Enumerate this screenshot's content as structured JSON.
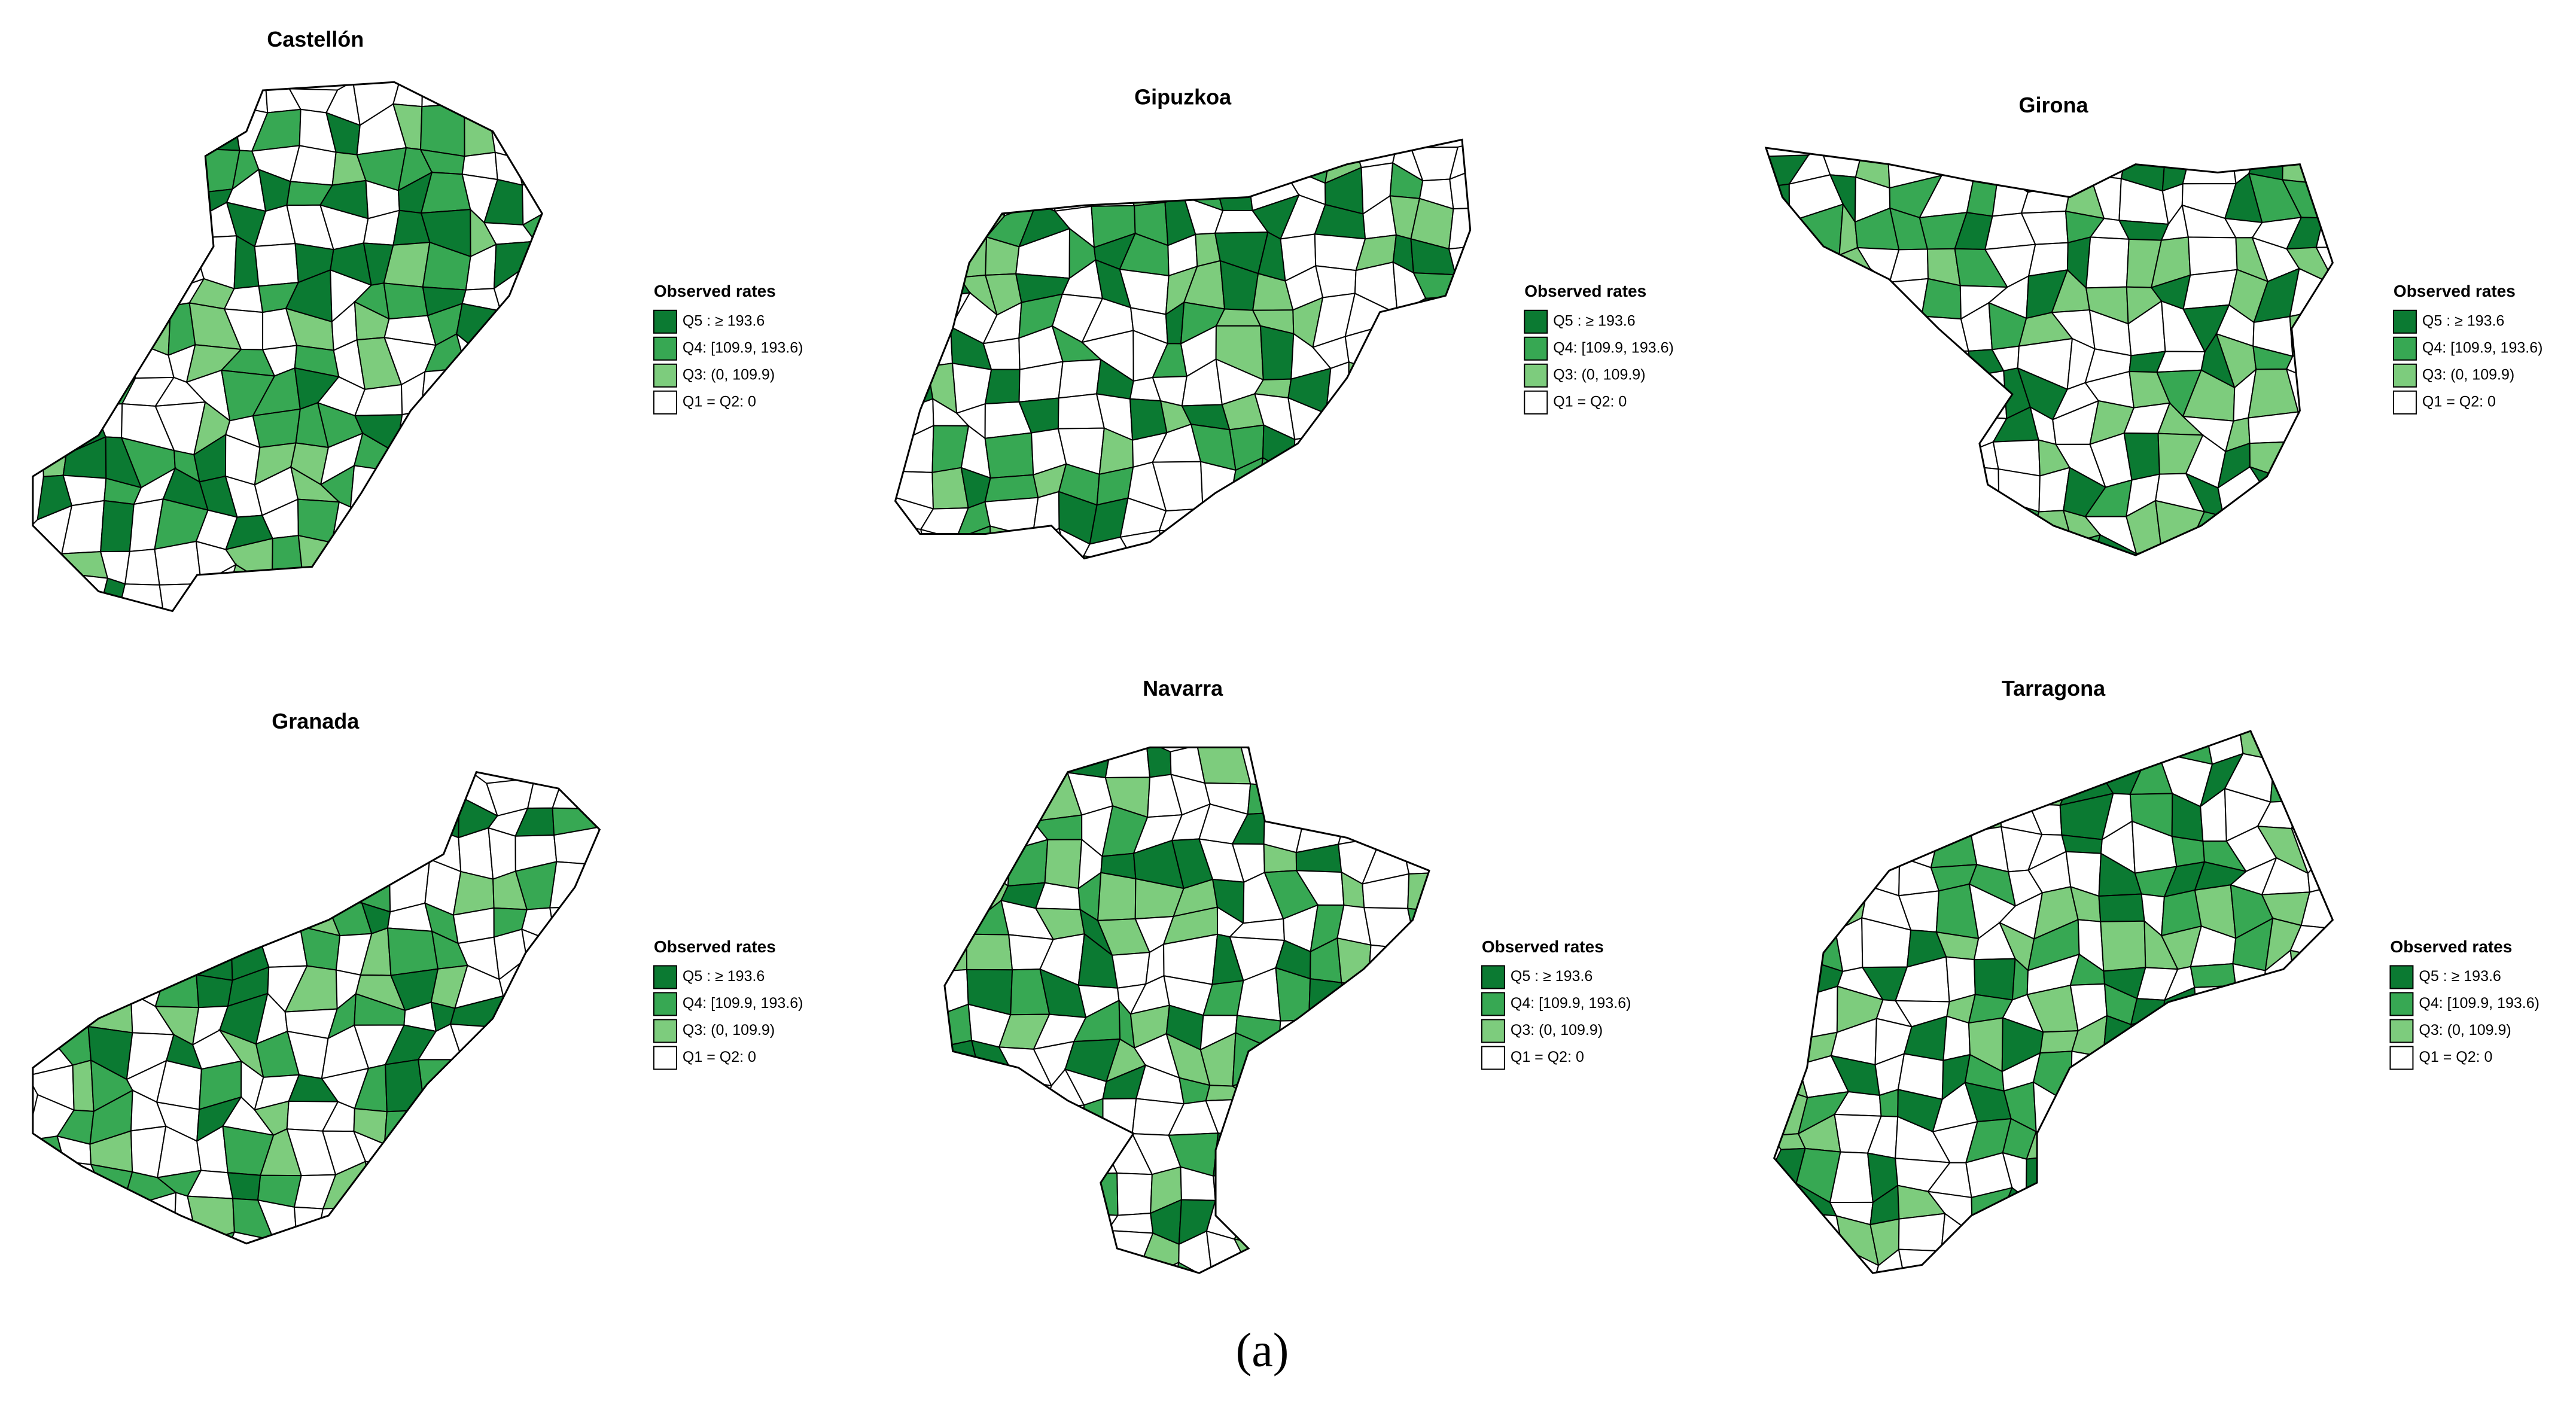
{
  "maps": [
    {
      "title": "Castellón",
      "legend": {
        "title": "Observed rates",
        "items": [
          {
            "label": "Q5 : ≥ 193.6",
            "color": "#0b7a32"
          },
          {
            "label": "Q4: [109.9, 193.6)",
            "color": "#37a853"
          },
          {
            "label": "Q3: (0, 109.9)",
            "color": "#7dcc7d"
          },
          {
            "label": "Q1 = Q2: 0",
            "color": "#ffffff"
          }
        ]
      }
    },
    {
      "title": "Gipuzkoa",
      "legend": {
        "title": "Observed rates",
        "items": [
          {
            "label": "Q5 : ≥ 193.6",
            "color": "#0b7a32"
          },
          {
            "label": "Q4: [109.9, 193.6)",
            "color": "#37a853"
          },
          {
            "label": "Q3: (0, 109.9)",
            "color": "#7dcc7d"
          },
          {
            "label": "Q1 = Q2: 0",
            "color": "#ffffff"
          }
        ]
      }
    },
    {
      "title": "Girona",
      "legend": {
        "title": "Observed rates",
        "items": [
          {
            "label": "Q5 : ≥ 193.6",
            "color": "#0b7a32"
          },
          {
            "label": "Q4: [109.9, 193.6)",
            "color": "#37a853"
          },
          {
            "label": "Q3: (0, 109.9)",
            "color": "#7dcc7d"
          },
          {
            "label": "Q1 = Q2: 0",
            "color": "#ffffff"
          }
        ]
      }
    },
    {
      "title": "Granada",
      "legend": {
        "title": "Observed rates",
        "items": [
          {
            "label": "Q5 : ≥ 193.6",
            "color": "#0b7a32"
          },
          {
            "label": "Q4: [109.9, 193.6)",
            "color": "#37a853"
          },
          {
            "label": "Q3: (0, 109.9)",
            "color": "#7dcc7d"
          },
          {
            "label": "Q1 = Q2: 0",
            "color": "#ffffff"
          }
        ]
      }
    },
    {
      "title": "Navarra",
      "legend": {
        "title": "Observed rates",
        "items": [
          {
            "label": "Q5 : ≥ 193.6",
            "color": "#0b7a32"
          },
          {
            "label": "Q4: [109.9, 193.6)",
            "color": "#37a853"
          },
          {
            "label": "Q3: (0, 109.9)",
            "color": "#7dcc7d"
          },
          {
            "label": "Q1 = Q2: 0",
            "color": "#ffffff"
          }
        ]
      }
    },
    {
      "title": "Tarragona",
      "legend": {
        "title": "Observed rates",
        "items": [
          {
            "label": "Q5 : ≥ 193.6",
            "color": "#0b7a32"
          },
          {
            "label": "Q4: [109.9, 193.6)",
            "color": "#37a853"
          },
          {
            "label": "Q3: (0, 109.9)",
            "color": "#7dcc7d"
          },
          {
            "label": "Q1 = Q2: 0",
            "color": "#ffffff"
          }
        ]
      }
    }
  ],
  "caption": "(a)"
}
